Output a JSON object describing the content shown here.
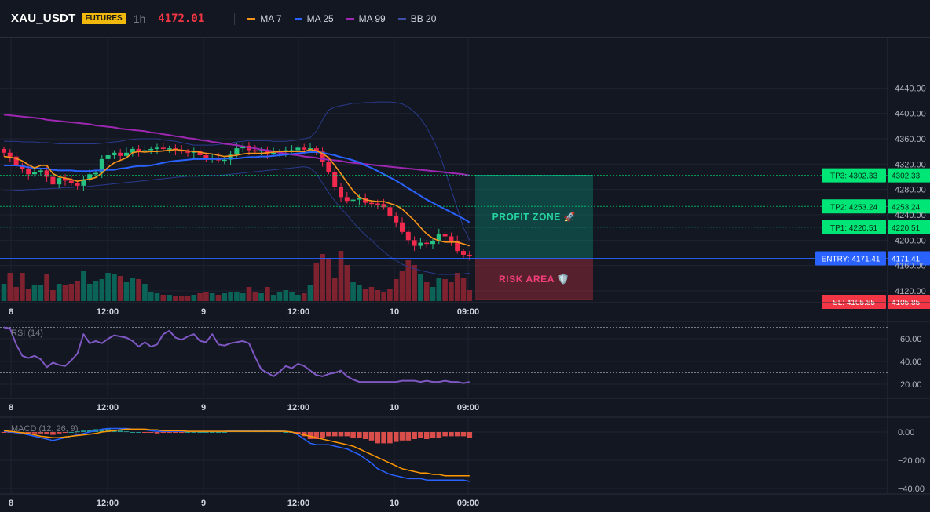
{
  "header": {
    "symbol": "XAU_USDT",
    "badge": "FUTURES",
    "interval": "1h",
    "price": "4172.01",
    "legend": [
      {
        "label": "MA 7",
        "color": "#f7931a"
      },
      {
        "label": "MA 25",
        "color": "#2962ff"
      },
      {
        "label": "MA 99",
        "color": "#9c27b0"
      },
      {
        "label": "BB 20",
        "color": "#3e4fa8"
      }
    ]
  },
  "chart_data": [
    {
      "type": "candlestick",
      "title": "XAU_USDT 1h",
      "y_ticks": [
        4440,
        4400,
        4360,
        4320,
        4280,
        4240,
        4200,
        4160,
        4120
      ],
      "y_tick_labels": [
        "4440.00",
        "4400.00",
        "4360.00",
        "4320.00",
        "4280.00",
        "4240.00",
        "4200.00",
        "4160.00",
        "4120.00"
      ],
      "ylim": [
        4110,
        4452
      ],
      "x_tick_labels": [
        "8",
        "12:00",
        "9",
        "12:00",
        "10",
        "09:00"
      ],
      "close": [
        4338,
        4332,
        4318,
        4312,
        4304,
        4308,
        4310,
        4300,
        4288,
        4298,
        4294,
        4290,
        4286,
        4296,
        4304,
        4306,
        4328,
        4334,
        4338,
        4333,
        4338,
        4344,
        4340,
        4342,
        4344,
        4346,
        4344,
        4345,
        4342,
        4340,
        4338,
        4340,
        4334,
        4330,
        4330,
        4326,
        4327,
        4335,
        4345,
        4349,
        4342,
        4340,
        4342,
        4336,
        4338,
        4340,
        4342,
        4342,
        4346,
        4343,
        4345,
        4340,
        4324,
        4308,
        4284,
        4268,
        4262,
        4264,
        4266,
        4259,
        4258,
        4257,
        4252,
        4238,
        4228,
        4213,
        4200,
        4191,
        4196,
        4194,
        4198,
        4210,
        4206,
        4199,
        4183,
        4177,
        4176
      ],
      "sma7": [
        4332,
        4331,
        4329,
        4325,
        4319,
        4314,
        4318,
        4318,
        4305,
        4300,
        4298,
        4296,
        4293,
        4295,
        4296,
        4299,
        4306,
        4315,
        4322,
        4326,
        4330,
        4338,
        4340,
        4339,
        4340,
        4340,
        4341,
        4342,
        4343,
        4342,
        4341,
        4340,
        4339,
        4337,
        4336,
        4334,
        4332,
        4333,
        4334,
        4336,
        4337,
        4337,
        4337,
        4338,
        4339,
        4340,
        4340,
        4340,
        4340,
        4340,
        4343,
        4341,
        4337,
        4330,
        4318,
        4305,
        4291,
        4278,
        4268,
        4264,
        4262,
        4261,
        4261,
        4258,
        4255,
        4249,
        4240,
        4231,
        4220,
        4210,
        4203,
        4199,
        4197,
        4197,
        4197,
        4194,
        4191
      ],
      "sma25": [
        4318,
        4318,
        4318,
        4317,
        4315,
        4314,
        4313,
        4313,
        4311,
        4310,
        4310,
        4310,
        4309,
        4309,
        4309,
        4310,
        4310,
        4311,
        4311,
        4313,
        4314,
        4316,
        4317,
        4317,
        4318,
        4320,
        4322,
        4324,
        4325,
        4326,
        4327,
        4328,
        4328,
        4328,
        4328,
        4328,
        4329,
        4329,
        4329,
        4330,
        4331,
        4331,
        4332,
        4332,
        4333,
        4334,
        4335,
        4336,
        4337,
        4338,
        4339,
        4339,
        4338,
        4336,
        4334,
        4331,
        4329,
        4326,
        4323,
        4318,
        4314,
        4309,
        4304,
        4299,
        4294,
        4288,
        4282,
        4276,
        4270,
        4264,
        4259,
        4254,
        4249,
        4244,
        4239,
        4234,
        4228
      ],
      "sma99": [
        4398,
        4397,
        4396,
        4395,
        4394,
        4393,
        4392,
        4390,
        4389,
        4388,
        4387,
        4386,
        4385,
        4384,
        4383,
        4381,
        4380,
        4379,
        4378,
        4376,
        4375,
        4374,
        4373,
        4372,
        4370,
        4369,
        4367,
        4366,
        4364,
        4363,
        4361,
        4360,
        4358,
        4357,
        4355,
        4354,
        4352,
        4351,
        4350,
        4348,
        4346,
        4345,
        4343,
        4342,
        4340,
        4338,
        4337,
        4335,
        4334,
        4332,
        4331,
        4330,
        4328,
        4327,
        4326,
        4325,
        4323,
        4322,
        4321,
        4320,
        4319,
        4318,
        4317,
        4316,
        4315,
        4314,
        4313,
        4312,
        4311,
        4310,
        4309,
        4308,
        4307,
        4306,
        4305,
        4304,
        4302
      ],
      "bb_upper": [
        4356,
        4356,
        4356,
        4355,
        4355,
        4355,
        4354,
        4354,
        4353,
        4352,
        4352,
        4352,
        4352,
        4352,
        4352,
        4352,
        4353,
        4354,
        4355,
        4356,
        4358,
        4359,
        4360,
        4360,
        4360,
        4360,
        4358,
        4357,
        4356,
        4354,
        4352,
        4350,
        4350,
        4350,
        4350,
        4351,
        4352,
        4353,
        4355,
        4356,
        4357,
        4357,
        4357,
        4357,
        4356,
        4356,
        4356,
        4357,
        4358,
        4360,
        4362,
        4372,
        4390,
        4405,
        4410,
        4412,
        4414,
        4416,
        4416,
        4417,
        4417,
        4418,
        4418,
        4418,
        4417,
        4415,
        4410,
        4402,
        4392,
        4378,
        4360,
        4338,
        4310,
        4280,
        4250,
        4220,
        4200
      ],
      "bb_lower": [
        4278,
        4278,
        4279,
        4279,
        4280,
        4280,
        4281,
        4281,
        4282,
        4282,
        4283,
        4283,
        4284,
        4284,
        4285,
        4286,
        4287,
        4288,
        4289,
        4290,
        4291,
        4292,
        4293,
        4294,
        4295,
        4296,
        4297,
        4298,
        4299,
        4300,
        4301,
        4301,
        4301,
        4302,
        4302,
        4302,
        4303,
        4304,
        4305,
        4306,
        4307,
        4308,
        4309,
        4310,
        4311,
        4312,
        4313,
        4314,
        4315,
        4316,
        4314,
        4305,
        4290,
        4275,
        4262,
        4250,
        4240,
        4228,
        4218,
        4208,
        4200,
        4190,
        4182,
        4174,
        4168,
        4162,
        4158,
        4155,
        4152,
        4150,
        4148,
        4146,
        4146,
        4146,
        4146,
        4147,
        4148
      ],
      "volume": [
        0.55,
        0.9,
        0.45,
        0.9,
        0.4,
        0.5,
        0.5,
        0.85,
        0.35,
        0.55,
        0.5,
        0.55,
        0.65,
        0.95,
        0.55,
        0.65,
        0.7,
        0.9,
        0.85,
        0.8,
        0.6,
        0.75,
        0.7,
        0.55,
        0.3,
        0.25,
        0.2,
        0.2,
        0.15,
        0.15,
        0.15,
        0.2,
        0.25,
        0.3,
        0.25,
        0.2,
        0.25,
        0.3,
        0.3,
        0.25,
        0.45,
        0.3,
        0.25,
        0.45,
        0.2,
        0.3,
        0.35,
        0.3,
        0.2,
        0.25,
        0.5,
        1.2,
        1.5,
        1.35,
        0.75,
        1.6,
        1.15,
        0.6,
        0.5,
        0.4,
        0.45,
        0.35,
        0.3,
        0.4,
        0.7,
        0.95,
        1.3,
        1.15,
        0.85,
        0.6,
        0.45,
        0.75,
        0.7,
        0.6,
        0.9,
        0.75,
        0.35
      ],
      "reference_lines": [
        {
          "label": "TP3: 4302.33",
          "value": 4302.33,
          "price": "4302.33",
          "color": "#00e676"
        },
        {
          "label": "TP2: 4253.24",
          "value": 4253.24,
          "price": "4253.24",
          "color": "#00e676"
        },
        {
          "label": "TP1: 4220.51",
          "value": 4220.51,
          "price": "4220.51",
          "color": "#00e676"
        },
        {
          "label": "ENTRY: 4171.41",
          "value": 4171.41,
          "price": "4171.41",
          "color": "#2962ff"
        },
        {
          "label": "SL: 4105.85",
          "value": 4105.85,
          "price": "4105.85",
          "color": "#f23645"
        }
      ],
      "zones": [
        {
          "label": "PROFIT ZONE 🚀",
          "from": 4171.41,
          "to": 4302.33,
          "color": "#089981"
        },
        {
          "label": "RISK AREA 🛡️",
          "from": 4105.85,
          "to": 4171.41,
          "color": "#f23645"
        }
      ]
    },
    {
      "type": "line",
      "title": "RSI (14)",
      "y_ticks": [
        60,
        40,
        20
      ],
      "y_tick_labels": [
        "60.00",
        "40.00",
        "20.00"
      ],
      "ylim": [
        8,
        78
      ],
      "levels": [
        70,
        30
      ],
      "x_tick_labels": [
        "8",
        "12:00",
        "9",
        "12:00",
        "10",
        "09:00"
      ],
      "values": [
        70,
        69,
        55,
        45,
        43,
        45,
        42,
        35,
        39,
        37,
        36,
        41,
        47,
        64,
        56,
        58,
        56,
        60,
        63,
        62,
        61,
        58,
        53,
        57,
        53,
        55,
        64,
        67,
        61,
        59,
        62,
        64,
        58,
        57,
        64,
        55,
        54,
        56,
        57,
        58,
        56,
        44,
        33,
        30,
        27,
        31,
        36,
        34,
        38,
        36,
        32,
        28,
        27,
        29,
        30,
        32,
        27,
        24,
        22,
        22,
        22,
        22,
        22,
        22,
        22,
        23,
        23,
        23,
        22,
        23,
        22,
        22,
        23,
        22,
        22,
        21,
        22
      ]
    },
    {
      "type": "bar+line",
      "title": "MACD (12, 26, 9)",
      "y_ticks": [
        0,
        -20,
        -40
      ],
      "y_tick_labels": [
        "0.00",
        "−20.00",
        "−40.00"
      ],
      "ylim": [
        -45,
        6
      ],
      "x_tick_labels": [
        "8",
        "12:00",
        "9",
        "12:00",
        "10",
        "09:00"
      ],
      "macd": [
        0.5,
        0,
        -0.5,
        -1,
        -2,
        -3,
        -4,
        -5,
        -6,
        -5,
        -4,
        -3,
        -2,
        -1,
        0,
        1,
        2,
        2.5,
        2.5,
        2.5,
        2.5,
        2,
        2,
        1.5,
        1,
        0.5,
        0.5,
        0.5,
        0.5,
        0.5,
        0.5,
        0.5,
        0.5,
        0.5,
        0.5,
        0.5,
        0.5,
        1,
        1,
        1,
        1,
        1,
        1,
        1,
        1,
        1,
        0.5,
        0,
        -2,
        -5,
        -8,
        -9,
        -9,
        -9,
        -10,
        -11,
        -12,
        -14,
        -16,
        -19,
        -22,
        -26,
        -28,
        -30,
        -31,
        -32,
        -33,
        -33,
        -33,
        -34,
        -34,
        -34,
        -34,
        -34,
        -34,
        -34,
        -35
      ],
      "signal": [
        1,
        0.5,
        0,
        -0.5,
        -1,
        -2,
        -3,
        -3.5,
        -4,
        -4,
        -3.5,
        -3,
        -2.5,
        -2,
        -1.5,
        -1,
        0,
        0.5,
        1,
        1.5,
        2,
        2,
        2,
        2,
        1.5,
        1.5,
        1,
        1,
        1,
        1,
        0.5,
        0.5,
        0.5,
        0.5,
        0.5,
        0.5,
        0.5,
        0.5,
        0.5,
        0.5,
        0.5,
        0.5,
        0.5,
        0.5,
        0.5,
        0.5,
        0.5,
        0,
        -1,
        -2,
        -3,
        -4,
        -5,
        -6,
        -7,
        -8,
        -9,
        -10,
        -12,
        -14,
        -16,
        -18,
        -20,
        -22,
        -24,
        -26,
        -27,
        -28,
        -29,
        -29,
        -30,
        -30,
        -31,
        -31,
        -31,
        -31,
        -31
      ],
      "histogram": [
        -0.5,
        -0.5,
        -0.5,
        -0.5,
        -1,
        -1,
        -1,
        -1.5,
        -2,
        -1,
        -0.5,
        0,
        0.5,
        1,
        1.5,
        2,
        2,
        2,
        1.5,
        1,
        0.5,
        0,
        0,
        -0.5,
        -0.5,
        -1,
        -0.5,
        -0.5,
        -0.5,
        -0.5,
        0,
        0,
        0,
        0,
        0,
        0,
        0,
        0.5,
        0.5,
        0.5,
        0.5,
        0.5,
        0.5,
        0.5,
        0.5,
        0.5,
        0,
        0,
        -1,
        -3,
        -5,
        -5,
        -4,
        -3,
        -3,
        -3,
        -3,
        -4,
        -4,
        -5,
        -6,
        -8,
        -8,
        -8,
        -7,
        -6,
        -6,
        -5,
        -4,
        -5,
        -4,
        -4,
        -3,
        -3,
        -3,
        -3,
        -4
      ]
    }
  ]
}
